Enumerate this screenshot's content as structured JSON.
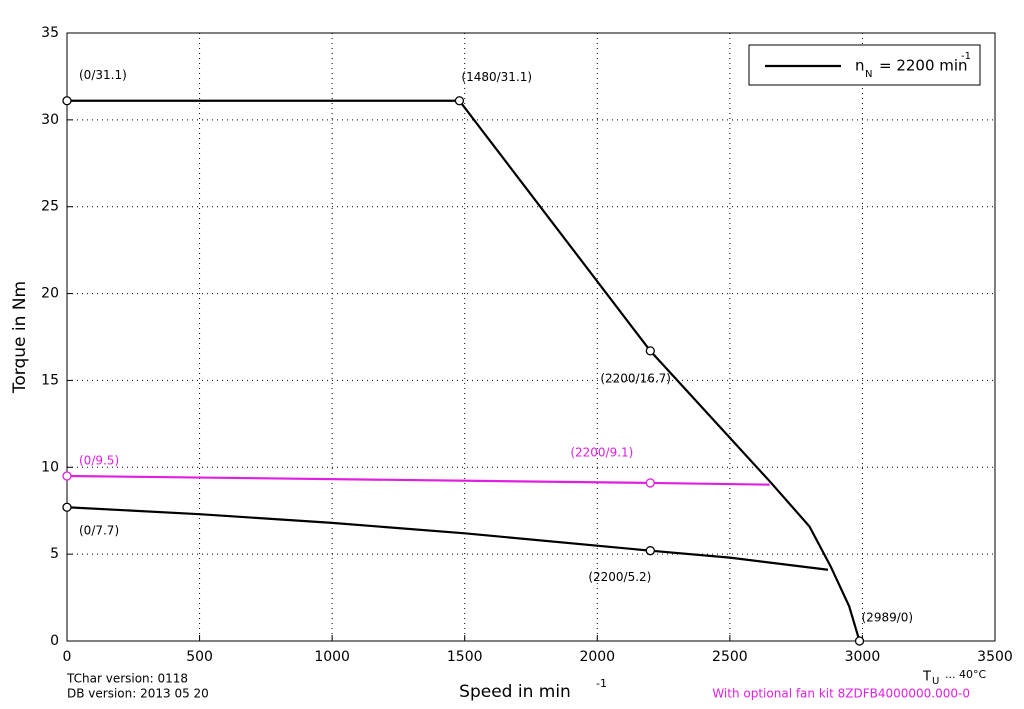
{
  "chart_data": {
    "type": "line",
    "x_label": "Speed in min",
    "x_label_sup": "-1",
    "y_label": "Torque in Nm",
    "xlim": [
      0,
      3500
    ],
    "xticks": [
      0,
      500,
      1000,
      1500,
      2000,
      2500,
      3000,
      3500
    ],
    "ylim": [
      0,
      35
    ],
    "yticks": [
      0,
      5,
      10,
      15,
      20,
      25,
      30,
      35
    ],
    "grid": true,
    "legend_position": "upper right",
    "legend": {
      "main": "n",
      "sub": "N",
      "rest": "= 2200 min",
      "sup": "-1"
    },
    "series": [
      {
        "color": "#000000",
        "x": [
          0,
          1480,
          2200,
          2650,
          2800,
          2880,
          2950,
          2989
        ],
        "values": [
          31.1,
          31.1,
          16.7,
          9.2,
          6.6,
          4.3,
          2,
          0
        ]
      },
      {
        "color": "#e020e0",
        "x": [
          0,
          2200,
          2650
        ],
        "values": [
          9.5,
          9.1,
          9.0
        ]
      },
      {
        "color": "#000000",
        "x": [
          0,
          500,
          1000,
          1500,
          2200,
          2500,
          2870
        ],
        "values": [
          7.7,
          7.3,
          6.8,
          6.2,
          5.2,
          4.8,
          4.1
        ]
      }
    ],
    "annotations": [
      {
        "text": "(0/31.1)",
        "x": 0,
        "y": 31.1,
        "color": "#000000"
      },
      {
        "text": "(1480/31.1)",
        "x": 1480,
        "y": 31.1,
        "color": "#000000"
      },
      {
        "text": "(2200/16.7)",
        "x": 2200,
        "y": 16.7,
        "color": "#000000"
      },
      {
        "text": "(2989/0)",
        "x": 2989,
        "y": 0,
        "color": "#000000"
      },
      {
        "text": "(0/9.5)",
        "x": 0,
        "y": 9.5,
        "color": "#e020e0"
      },
      {
        "text": "(2200/9.1)",
        "x": 2200,
        "y": 9.1,
        "color": "#e020e0"
      },
      {
        "text": "(0/7.7)",
        "x": 0,
        "y": 7.7,
        "color": "#000000"
      },
      {
        "text": "(2200/5.2)",
        "x": 2200,
        "y": 5.2,
        "color": "#000000"
      }
    ],
    "footer": {
      "tchar": "TChar version: 0118",
      "db": "DB version: 2013 05 20",
      "tu_main": "T",
      "tu_sub": "U",
      "tu_rest": "... 40°C",
      "fan_kit": "With optional fan kit 8ZDFB4000000.000-0",
      "fan_kit_color": "#e020e0"
    }
  }
}
